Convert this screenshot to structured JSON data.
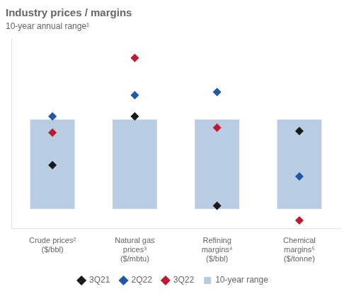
{
  "chart_data": {
    "type": "bar",
    "title": "Industry prices / margins",
    "subtitle": "10-year annual range¹",
    "categories": [
      "Crude prices²\n($/bbl)",
      "Natural gas\nprices³\n($/mbtu)",
      "Refining\nmargins⁴\n($/bbl)",
      "Chemical\nmargins⁵\n($/tonne)"
    ],
    "series": [
      {
        "name": "3Q21",
        "type": "scatter",
        "marker": "diamond",
        "color": "#1a1a1a",
        "values": [
          0.27,
          0.57,
          0.02,
          0.48
        ]
      },
      {
        "name": "2Q22",
        "type": "scatter",
        "marker": "diamond",
        "color": "#2057a7",
        "values": [
          0.57,
          0.7,
          0.72,
          0.2
        ]
      },
      {
        "name": "3Q22",
        "type": "scatter",
        "marker": "diamond",
        "color": "#c0182e",
        "values": [
          0.47,
          0.93,
          0.5,
          -0.07
        ]
      },
      {
        "name": "10-year range",
        "type": "bar",
        "color": "#b8cce4",
        "values": [
          [
            0.0,
            0.55
          ],
          [
            0.0,
            0.55
          ],
          [
            0.0,
            0.55
          ],
          [
            0.0,
            0.55
          ]
        ]
      }
    ],
    "ylim": [
      -0.12,
      1.05
    ],
    "grid": false,
    "legend": "bottom",
    "tick_labels": "x"
  }
}
